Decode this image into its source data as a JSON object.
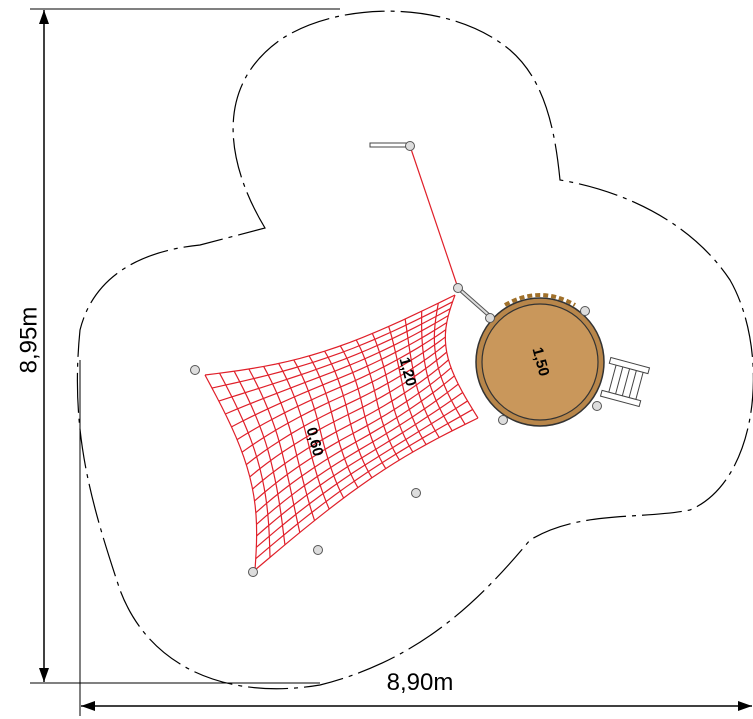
{
  "dimensions": {
    "height": "8,95m",
    "width": "8,90m"
  },
  "labels": {
    "platform": "1,50",
    "net_high": "1,20",
    "net_low": "0,60"
  }
}
